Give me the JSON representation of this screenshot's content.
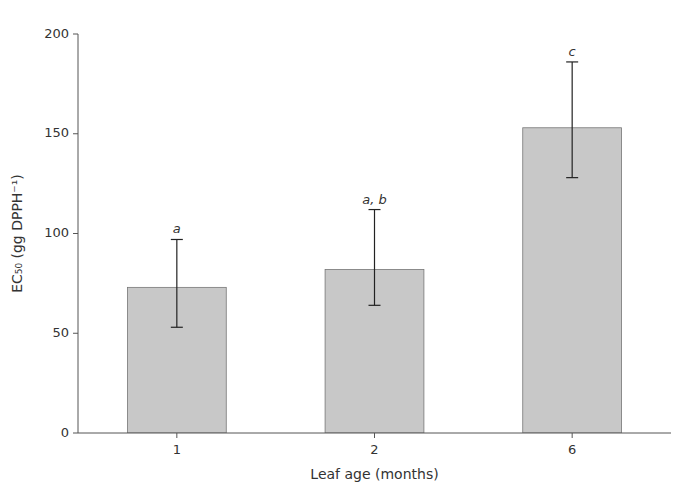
{
  "chart_data": {
    "type": "bar",
    "categories": [
      "1",
      "2",
      "6"
    ],
    "values": [
      73,
      82,
      153
    ],
    "errors_lower": [
      20,
      18,
      25
    ],
    "errors_upper": [
      24,
      30,
      33
    ],
    "significance_labels": [
      "a",
      "a, b",
      "c"
    ],
    "color": "#c8c8c8",
    "xlabel": "Leaf age (months)",
    "ylabel": "EC₅₀ (gg DPPH⁻¹)",
    "ylim": [
      0,
      200
    ],
    "yticks": [
      0,
      50,
      100,
      150,
      200
    ],
    "grid": false
  }
}
